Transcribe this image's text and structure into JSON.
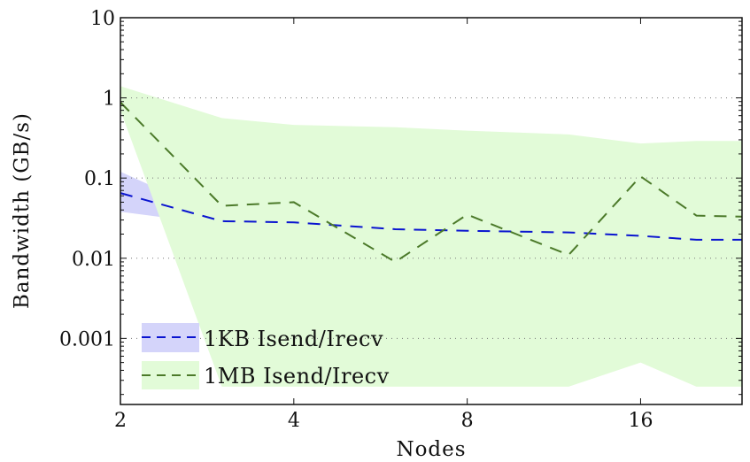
{
  "chart_data": {
    "type": "line",
    "title": "",
    "xlabel": "Nodes",
    "ylabel": "Bandwidth (GB/s)",
    "xscale": "log2",
    "yscale": "log10",
    "xlim": [
      2,
      24
    ],
    "ylim": [
      0.00015,
      10
    ],
    "x_ticks": [
      2,
      4,
      8,
      16
    ],
    "x_tick_labels": [
      "2",
      "4",
      "8",
      "16"
    ],
    "y_ticks": [
      10,
      1,
      0.1,
      0.01,
      0.001
    ],
    "y_tick_labels": [
      "10",
      "1",
      "0.1",
      "0.01",
      "0.001"
    ],
    "grid": "dotted at y major ticks",
    "legend_position": "bottom-left",
    "x": [
      2,
      3,
      4,
      6,
      8,
      12,
      16,
      20,
      24
    ],
    "series": [
      {
        "name": "1KB Isend/Irecv",
        "line_color": "#0a14d0",
        "band_color": "#d4d4fa",
        "values": [
          0.065,
          0.029,
          0.028,
          0.023,
          0.022,
          0.021,
          0.019,
          0.017,
          0.017
        ],
        "band_upper": [
          0.12,
          0.032,
          0.031,
          0.026,
          0.025,
          0.024,
          0.021,
          0.019,
          0.019
        ],
        "band_lower": [
          0.038,
          0.026,
          0.025,
          0.021,
          0.02,
          0.019,
          0.017,
          0.015,
          0.015
        ]
      },
      {
        "name": "1MB Isend/Irecv",
        "line_color": "#4c7a2a",
        "band_color": "#e2fbd8",
        "values": [
          0.88,
          0.045,
          0.05,
          0.009,
          0.035,
          0.011,
          0.105,
          0.034,
          0.033
        ],
        "band_upper": [
          1.4,
          0.56,
          0.46,
          0.43,
          0.39,
          0.35,
          0.27,
          0.29,
          0.29
        ],
        "band_lower": [
          0.7,
          0.00025,
          0.00025,
          0.00025,
          0.00025,
          0.00025,
          0.0005,
          0.00025,
          0.00025
        ]
      }
    ]
  }
}
